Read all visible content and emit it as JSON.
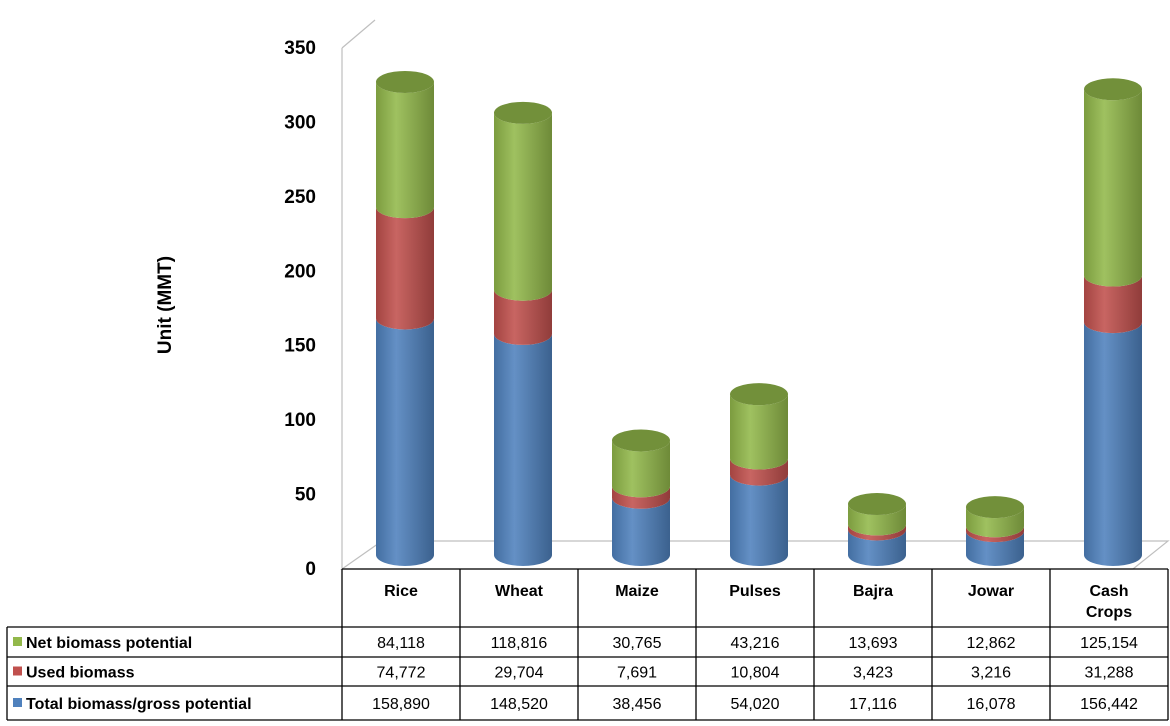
{
  "chart_data": {
    "type": "bar",
    "stacked": true,
    "style": "3d-cylinder",
    "title": "",
    "xlabel": "",
    "ylabel": "Unit (MMT)",
    "ylim": [
      0,
      350
    ],
    "yticks": [
      0,
      50,
      100,
      150,
      200,
      250,
      300,
      350
    ],
    "categories": [
      {
        "id": "rice",
        "lines": [
          "Rice"
        ]
      },
      {
        "id": "wheat",
        "lines": [
          "Wheat"
        ]
      },
      {
        "id": "maize",
        "lines": [
          "Maize"
        ]
      },
      {
        "id": "pulses",
        "lines": [
          "Pulses"
        ]
      },
      {
        "id": "bajra",
        "lines": [
          "Bajra"
        ]
      },
      {
        "id": "jowar",
        "lines": [
          "Jowar"
        ]
      },
      {
        "id": "cash-crops",
        "lines": [
          "Cash",
          "Crops"
        ]
      }
    ],
    "series": [
      {
        "id": "net",
        "name": "Net biomass potential",
        "color": "#92b84a",
        "values": [
          84.118,
          118.816,
          30.765,
          43.216,
          13.693,
          12.862,
          125.154
        ],
        "labels": [
          "84,118",
          "118,816",
          "30,765",
          "43,216",
          "13,693",
          "12,862",
          "125,154"
        ]
      },
      {
        "id": "used",
        "name": "Used biomass",
        "color": "#c0504d",
        "values": [
          74.772,
          29.704,
          7.691,
          10.804,
          3.423,
          3.216,
          31.288
        ],
        "labels": [
          "74,772",
          "29,704",
          "7,691",
          "10,804",
          "3,423",
          "3,216",
          "31,288"
        ]
      },
      {
        "id": "total",
        "name": "Total biomass/gross potential",
        "color": "#4f81bd",
        "values": [
          158.89,
          148.52,
          38.456,
          54.02,
          17.116,
          16.078,
          156.442
        ],
        "labels": [
          "158,890",
          "148,520",
          "38,456",
          "54,020",
          "17,116",
          "16,078",
          "156,442"
        ]
      }
    ],
    "stack_order_bottom_to_top": [
      "total",
      "used",
      "net"
    ],
    "legend": "data-table-left",
    "grid": false
  }
}
